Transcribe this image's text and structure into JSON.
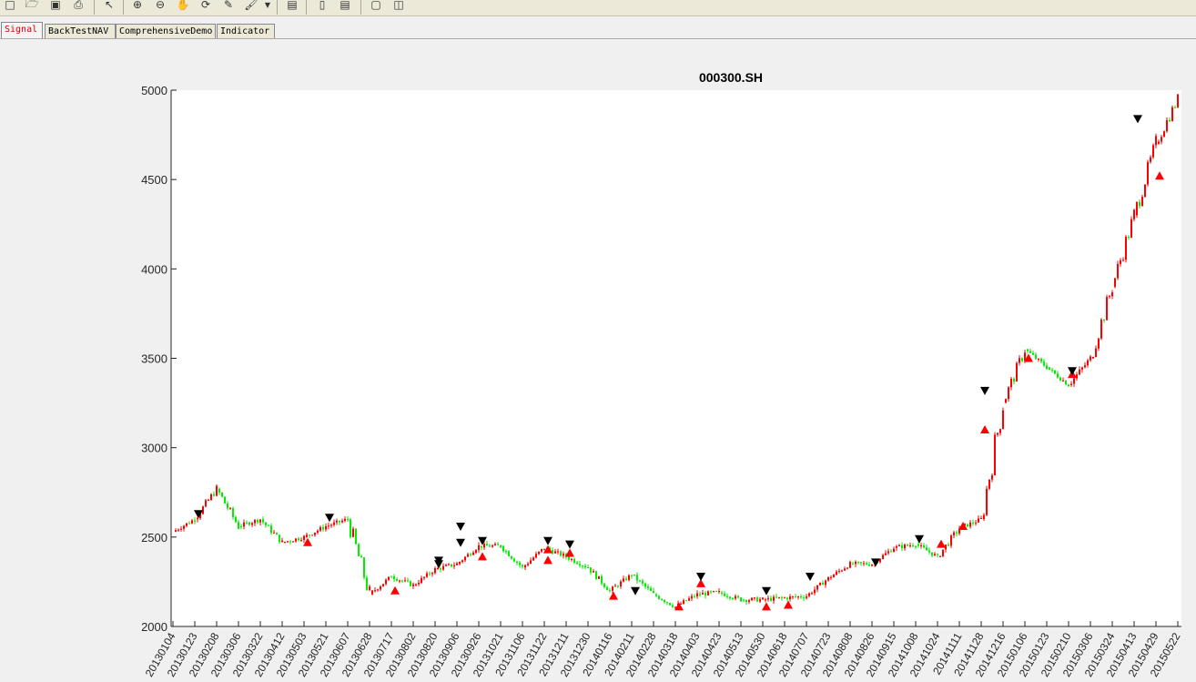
{
  "toolbar": {
    "icons": [
      "new-file-icon",
      "open-file-icon",
      "save-icon",
      "print-icon",
      "select-pointer-icon",
      "zoom-in-icon",
      "zoom-out-icon",
      "pan-hand-icon",
      "rotate-3d-icon",
      "data-cursor-icon",
      "brush-icon",
      "dropdown-arrow-icon",
      "link-plot-icon",
      "colorbar-icon",
      "legend-icon",
      "hide-plot-tools-icon",
      "show-plot-tools-icon"
    ]
  },
  "tabs": [
    {
      "label": "Signal",
      "active": true
    },
    {
      "label": "BackTestNAV",
      "active": false
    },
    {
      "label": "ComprehensiveDemo",
      "active": false
    },
    {
      "label": "Indicator",
      "active": false
    }
  ],
  "colors": {
    "up": "#ff0000",
    "down": "#00ee00",
    "buy": "#ff0000",
    "sell": "#000000"
  },
  "chart_data": {
    "type": "candlestick",
    "title": "000300.SH",
    "xlabel": "",
    "ylabel": "",
    "ylim": [
      2000,
      5000
    ],
    "yticks": [
      2000,
      2500,
      3000,
      3500,
      4000,
      4500,
      5000
    ],
    "xticks": [
      "20130104",
      "20130123",
      "20130208",
      "20130306",
      "20130322",
      "20130412",
      "20130503",
      "20130521",
      "20130607",
      "20130628",
      "20130717",
      "20130802",
      "20130820",
      "20130906",
      "20130926",
      "20131021",
      "20131106",
      "20131122",
      "20131211",
      "20131230",
      "20140116",
      "20140211",
      "20140228",
      "20140318",
      "20140403",
      "20140423",
      "20140513",
      "20140530",
      "20140618",
      "20140707",
      "20140723",
      "20140808",
      "20140826",
      "20140915",
      "20141008",
      "20141024",
      "20141111",
      "20141128",
      "20141216",
      "20150106",
      "20150123",
      "20150210",
      "20150306",
      "20150324",
      "20150413",
      "20150429",
      "20150522"
    ],
    "series": [
      {
        "name": "",
        "values": [
          {
            "date": "20130104",
            "close": 2530
          },
          {
            "date": "20130123",
            "close": 2600
          },
          {
            "date": "20130208",
            "close": 2770
          },
          {
            "date": "20130306",
            "close": 2560
          },
          {
            "date": "20130322",
            "close": 2600
          },
          {
            "date": "20130412",
            "close": 2470
          },
          {
            "date": "20130503",
            "close": 2500
          },
          {
            "date": "20130521",
            "close": 2560
          },
          {
            "date": "20130607",
            "close": 2600
          },
          {
            "date": "20130628",
            "close": 2180
          },
          {
            "date": "20130717",
            "close": 2280
          },
          {
            "date": "20130802",
            "close": 2230
          },
          {
            "date": "20130820",
            "close": 2320
          },
          {
            "date": "20130906",
            "close": 2350
          },
          {
            "date": "20130926",
            "close": 2450
          },
          {
            "date": "20131021",
            "close": 2450
          },
          {
            "date": "20131106",
            "close": 2330
          },
          {
            "date": "20131122",
            "close": 2440
          },
          {
            "date": "20131211",
            "close": 2390
          },
          {
            "date": "20131230",
            "close": 2330
          },
          {
            "date": "20140116",
            "close": 2200
          },
          {
            "date": "20140211",
            "close": 2290
          },
          {
            "date": "20140228",
            "close": 2180
          },
          {
            "date": "20140318",
            "close": 2110
          },
          {
            "date": "20140403",
            "close": 2180
          },
          {
            "date": "20140423",
            "close": 2190
          },
          {
            "date": "20140513",
            "close": 2150
          },
          {
            "date": "20140530",
            "close": 2150
          },
          {
            "date": "20140618",
            "close": 2160
          },
          {
            "date": "20140707",
            "close": 2170
          },
          {
            "date": "20140723",
            "close": 2270
          },
          {
            "date": "20140808",
            "close": 2350
          },
          {
            "date": "20140826",
            "close": 2350
          },
          {
            "date": "20140915",
            "close": 2440
          },
          {
            "date": "20141008",
            "close": 2460
          },
          {
            "date": "20141024",
            "close": 2390
          },
          {
            "date": "20141111",
            "close": 2550
          },
          {
            "date": "20141128",
            "close": 2600
          },
          {
            "date": "20141216",
            "close": 3250
          },
          {
            "date": "20150106",
            "close": 3550
          },
          {
            "date": "20150123",
            "close": 3450
          },
          {
            "date": "20150210",
            "close": 3350
          },
          {
            "date": "20150306",
            "close": 3500
          },
          {
            "date": "20150324",
            "close": 3900
          },
          {
            "date": "20150413",
            "close": 4300
          },
          {
            "date": "20150429",
            "close": 4700
          },
          {
            "date": "20150522",
            "close": 4950
          }
        ]
      }
    ],
    "buy_signals": [
      {
        "date": "20130503",
        "value": 2470
      },
      {
        "date": "20130717",
        "value": 2200
      },
      {
        "date": "20130926",
        "value": 2390
      },
      {
        "date": "20131122",
        "value": 2370
      },
      {
        "date": "20131122",
        "value": 2430
      },
      {
        "date": "20131211",
        "value": 2410
      },
      {
        "date": "20140116",
        "value": 2170
      },
      {
        "date": "20140318",
        "value": 2110
      },
      {
        "date": "20140403",
        "value": 2240
      },
      {
        "date": "20140530",
        "value": 2110
      },
      {
        "date": "20140618",
        "value": 2120
      },
      {
        "date": "20141024",
        "value": 2460
      },
      {
        "date": "20141111",
        "value": 2560
      },
      {
        "date": "20141128",
        "value": 3100
      },
      {
        "date": "20150106",
        "value": 3500
      },
      {
        "date": "20150210",
        "value": 3410
      },
      {
        "date": "20150429",
        "value": 4520
      }
    ],
    "sell_signals": [
      {
        "date": "20130123",
        "value": 2630
      },
      {
        "date": "20130521",
        "value": 2610
      },
      {
        "date": "20130820",
        "value": 2350
      },
      {
        "date": "20130820",
        "value": 2370
      },
      {
        "date": "20130906",
        "value": 2560
      },
      {
        "date": "20130906",
        "value": 2470
      },
      {
        "date": "20130926",
        "value": 2480
      },
      {
        "date": "20131122",
        "value": 2480
      },
      {
        "date": "20131211",
        "value": 2460
      },
      {
        "date": "20140211",
        "value": 2200
      },
      {
        "date": "20140403",
        "value": 2280
      },
      {
        "date": "20140530",
        "value": 2200
      },
      {
        "date": "20140707",
        "value": 2280
      },
      {
        "date": "20140826",
        "value": 2360
      },
      {
        "date": "20141008",
        "value": 2490
      },
      {
        "date": "20141128",
        "value": 3320
      },
      {
        "date": "20150210",
        "value": 3430
      },
      {
        "date": "20150413",
        "value": 4840
      }
    ],
    "grid": false
  }
}
